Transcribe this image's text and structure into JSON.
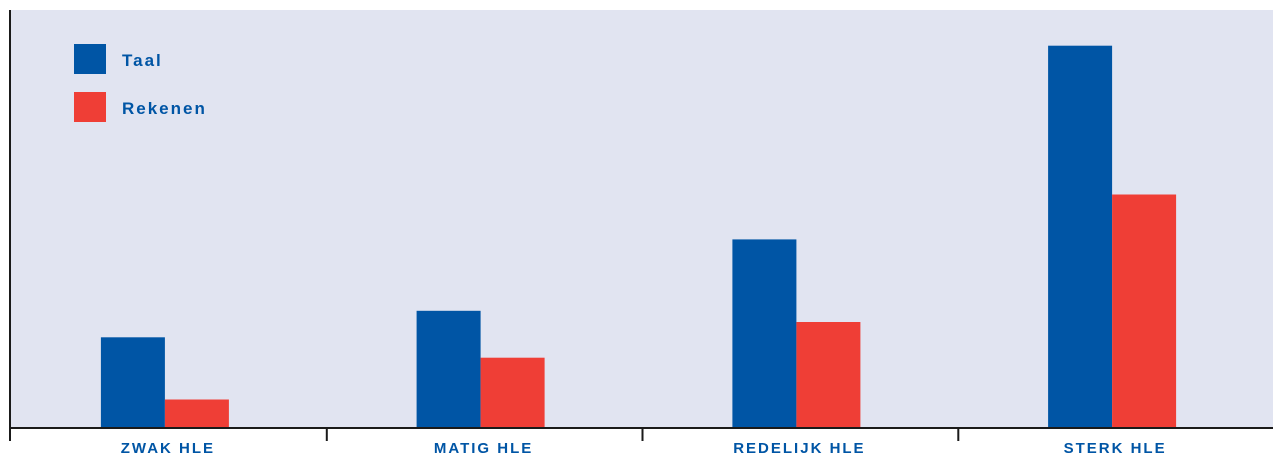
{
  "chart_data": {
    "type": "bar",
    "categories": [
      "ZWAK HLE",
      "MATIG HLE",
      "REDELIJK HLE",
      "STERK HLE"
    ],
    "series": [
      {
        "name": "Taal",
        "values": [
          0.89,
          1.15,
          1.85,
          3.75
        ]
      },
      {
        "name": "Rekenen",
        "values": [
          0.28,
          0.69,
          1.04,
          2.29
        ]
      }
    ],
    "title": "",
    "xlabel": "",
    "ylabel": "",
    "ylim": [
      0,
      4.1
    ],
    "grid": false,
    "legend": "top-left",
    "colors": {
      "Taal": "#0055a5",
      "Rekenen": "#ef3e36",
      "background": "#e1e4f1",
      "axis": "#1a1a1a",
      "label": "#0055a5"
    }
  }
}
